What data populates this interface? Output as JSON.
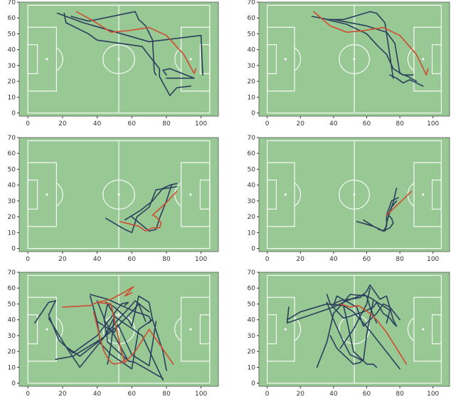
{
  "colors": {
    "pitch": "#98c995",
    "markings": "#ffffff",
    "series_a": "#2b3f5c",
    "series_b": "#cf4b32"
  },
  "chart_data": [
    {
      "type": "line",
      "xlim": [
        -5,
        110
      ],
      "ylim": [
        -2,
        70
      ],
      "xticks": [
        0,
        20,
        40,
        60,
        80,
        100
      ],
      "yticks": [
        0,
        10,
        20,
        30,
        40,
        50,
        60,
        70
      ],
      "series": [
        {
          "color": "#2b3f5c",
          "x": [
            21,
            22,
            35,
            40,
            66,
            68,
            76,
            76,
            82,
            86,
            94
          ],
          "y": [
            63,
            57,
            50,
            46,
            42,
            39,
            28,
            23,
            11,
            16,
            17
          ]
        },
        {
          "color": "#2b3f5c",
          "x": [
            17,
            32,
            70,
            100,
            101
          ],
          "y": [
            63,
            57,
            45,
            49,
            24
          ]
        },
        {
          "color": "#2b3f5c",
          "x": [
            25,
            35,
            62,
            64,
            68,
            72,
            73,
            74
          ],
          "y": [
            61,
            58,
            64,
            59,
            55,
            46,
            26,
            24
          ]
        },
        {
          "color": "#2b3f5c",
          "x": [
            80,
            96,
            82,
            78,
            80
          ],
          "y": [
            22,
            22,
            28,
            27,
            24
          ]
        },
        {
          "color": "#cf4b32",
          "x": [
            28,
            38,
            48,
            58,
            70,
            80,
            90,
            96,
            97
          ],
          "y": [
            64,
            58,
            51,
            52,
            54,
            49,
            37,
            25,
            28
          ]
        }
      ]
    },
    {
      "type": "line",
      "xlim": [
        -5,
        110
      ],
      "ylim": [
        -2,
        70
      ],
      "xticks": [
        0,
        20,
        40,
        60,
        80,
        100
      ],
      "yticks": [
        0,
        10,
        20,
        30,
        40,
        50,
        60,
        70
      ],
      "series": [
        {
          "color": "#2b3f5c",
          "x": [
            27,
            37,
            46,
            62,
            66,
            71,
            76
          ],
          "y": [
            61,
            59,
            59,
            64,
            63,
            57,
            22
          ]
        },
        {
          "color": "#2b3f5c",
          "x": [
            36,
            48,
            60,
            67,
            72,
            76,
            82,
            88
          ],
          "y": [
            59,
            56,
            50,
            42,
            37,
            28,
            24,
            24
          ]
        },
        {
          "color": "#2b3f5c",
          "x": [
            74,
            78,
            82,
            86,
            90,
            94
          ],
          "y": [
            24,
            22,
            19,
            21,
            19,
            17
          ]
        },
        {
          "color": "#2b3f5c",
          "x": [
            40,
            60,
            72,
            77,
            80,
            85,
            90
          ],
          "y": [
            59,
            55,
            51,
            44,
            25,
            23,
            20
          ]
        },
        {
          "color": "#cf4b32",
          "x": [
            28,
            38,
            48,
            58,
            70,
            80,
            90,
            96,
            97
          ],
          "y": [
            64,
            55,
            51,
            52,
            54,
            49,
            37,
            24,
            28
          ]
        }
      ]
    },
    {
      "type": "line",
      "xlim": [
        -5,
        110
      ],
      "ylim": [
        -2,
        70
      ],
      "xticks": [
        0,
        20,
        40,
        60,
        80,
        100
      ],
      "yticks": [
        0,
        10,
        20,
        30,
        40,
        50,
        60,
        70
      ],
      "series": [
        {
          "color": "#2b3f5c",
          "x": [
            45,
            56,
            60,
            63,
            70,
            74,
            86
          ],
          "y": [
            19,
            12,
            10,
            20,
            26,
            37,
            39
          ]
        },
        {
          "color": "#2b3f5c",
          "x": [
            56,
            65,
            72,
            78,
            82,
            86
          ],
          "y": [
            18,
            24,
            30,
            38,
            40,
            41
          ]
        },
        {
          "color": "#2b3f5c",
          "x": [
            60,
            70,
            74,
            76,
            80,
            83
          ],
          "y": [
            20,
            11,
            12,
            19,
            30,
            40
          ]
        },
        {
          "color": "#cf4b32",
          "x": [
            53,
            64,
            68,
            72,
            76,
            77,
            74,
            72,
            80,
            86
          ],
          "y": [
            17,
            14,
            11,
            13,
            13,
            16,
            20,
            21,
            29,
            36
          ]
        }
      ]
    },
    {
      "type": "line",
      "xlim": [
        -5,
        110
      ],
      "ylim": [
        -2,
        70
      ],
      "xticks": [
        0,
        20,
        40,
        60,
        80,
        100
      ],
      "yticks": [
        0,
        10,
        20,
        30,
        40,
        50,
        60,
        70
      ],
      "series": [
        {
          "color": "#2b3f5c",
          "x": [
            54,
            64,
            70,
            74,
            76,
            75,
            73,
            76,
            78
          ],
          "y": [
            17,
            14,
            11,
            13,
            16,
            19,
            21,
            29,
            38
          ]
        },
        {
          "color": "#2b3f5c",
          "x": [
            58,
            64,
            70,
            72,
            72,
            75,
            79
          ],
          "y": [
            18,
            14,
            11,
            14,
            21,
            30,
            32
          ]
        },
        {
          "color": "#2b3f5c",
          "x": [
            67,
            71,
            73,
            75,
            78
          ],
          "y": [
            12,
            11,
            20,
            26,
            30
          ]
        },
        {
          "color": "#cf4b32",
          "x": [
            72,
            76,
            82,
            87
          ],
          "y": [
            21,
            25,
            31,
            36
          ]
        }
      ]
    },
    {
      "type": "line",
      "xlim": [
        -5,
        110
      ],
      "ylim": [
        -2,
        70
      ],
      "xticks": [
        0,
        20,
        40,
        60,
        80,
        100
      ],
      "yticks": [
        0,
        10,
        20,
        30,
        40,
        50,
        60,
        70
      ],
      "series": [
        {
          "color": "#2b3f5c",
          "x": [
            4,
            12,
            16,
            12,
            18,
            26,
            40,
            54,
            58,
            56
          ],
          "y": [
            38,
            51,
            52,
            43,
            27,
            19,
            30,
            50,
            51,
            49
          ]
        },
        {
          "color": "#2b3f5c",
          "x": [
            12,
            22,
            30,
            44,
            50,
            66,
            78
          ],
          "y": [
            41,
            23,
            10,
            29,
            42,
            30,
            2
          ]
        },
        {
          "color": "#2b3f5c",
          "x": [
            36,
            46,
            62,
            68,
            70,
            71,
            70
          ],
          "y": [
            56,
            53,
            45,
            43,
            42,
            40,
            38
          ]
        },
        {
          "color": "#2b3f5c",
          "x": [
            40,
            50,
            52,
            60,
            70,
            74
          ],
          "y": [
            39,
            32,
            37,
            18,
            11,
            39
          ]
        },
        {
          "color": "#2b3f5c",
          "x": [
            36,
            40,
            42,
            48,
            60,
            64,
            72,
            78,
            80
          ],
          "y": [
            55,
            39,
            25,
            18,
            9,
            34,
            40,
            20,
            8
          ]
        },
        {
          "color": "#2b3f5c",
          "x": [
            22,
            30,
            44,
            52,
            58,
            62,
            70
          ],
          "y": [
            23,
            17,
            29,
            40,
            47,
            52,
            45
          ]
        },
        {
          "color": "#2b3f5c",
          "x": [
            16,
            26,
            44,
            52,
            60,
            64,
            68
          ],
          "y": [
            15,
            17,
            29,
            36,
            45,
            50,
            39
          ]
        },
        {
          "color": "#2b3f5c",
          "x": [
            45,
            50,
            58,
            60,
            64,
            70,
            72
          ],
          "y": [
            51,
            48,
            40,
            36,
            55,
            51,
            40
          ]
        },
        {
          "color": "#2b3f5c",
          "x": [
            40,
            44,
            46,
            52,
            58,
            62,
            78
          ],
          "y": [
            52,
            41,
            26,
            20,
            14,
            13,
            3
          ]
        },
        {
          "color": "#2b3f5c",
          "x": [
            46,
            48,
            50,
            46,
            44,
            50,
            58
          ],
          "y": [
            12,
            24,
            43,
            50,
            40,
            30,
            14
          ]
        },
        {
          "color": "#cf4b32",
          "x": [
            20,
            36,
            40,
            48,
            55,
            58,
            61,
            56,
            60
          ],
          "y": [
            48,
            49,
            51,
            53,
            57,
            59,
            61,
            55,
            57
          ]
        },
        {
          "color": "#cf4b32",
          "x": [
            40,
            48,
            50,
            52,
            54,
            56,
            62,
            70,
            84
          ],
          "y": [
            51,
            50,
            40,
            30,
            20,
            13,
            20,
            34,
            12
          ]
        },
        {
          "color": "#cf4b32",
          "x": [
            38,
            40,
            42,
            44,
            46,
            48,
            50,
            54,
            56
          ],
          "y": [
            45,
            36,
            27,
            20,
            16,
            13,
            12,
            13,
            15
          ]
        }
      ]
    },
    {
      "type": "line",
      "xlim": [
        -5,
        110
      ],
      "ylim": [
        -2,
        70
      ],
      "xticks": [
        0,
        20,
        40,
        60,
        80,
        100
      ],
      "yticks": [
        0,
        10,
        20,
        30,
        40,
        50,
        60,
        70
      ],
      "series": [
        {
          "color": "#2b3f5c",
          "x": [
            13,
            12,
            40,
            48,
            58,
            62,
            74,
            72
          ],
          "y": [
            48,
            38,
            48,
            52,
            56,
            54,
            46,
            38
          ]
        },
        {
          "color": "#2b3f5c",
          "x": [
            36,
            38,
            46,
            58,
            64,
            66,
            70,
            74,
            76,
            78
          ],
          "y": [
            56,
            50,
            41,
            45,
            48,
            51,
            44,
            41,
            38,
            36
          ]
        },
        {
          "color": "#2b3f5c",
          "x": [
            36,
            40,
            46,
            50,
            58,
            60,
            64
          ],
          "y": [
            51,
            40,
            26,
            18,
            14,
            31,
            52
          ]
        },
        {
          "color": "#2b3f5c",
          "x": [
            40,
            42,
            54,
            58,
            66,
            70,
            74,
            80
          ],
          "y": [
            49,
            55,
            48,
            36,
            44,
            50,
            48,
            40
          ]
        },
        {
          "color": "#2b3f5c",
          "x": [
            30,
            36,
            40,
            46,
            50,
            60,
            62,
            66
          ],
          "y": [
            10,
            26,
            44,
            51,
            56,
            55,
            48,
            38
          ]
        },
        {
          "color": "#2b3f5c",
          "x": [
            40,
            44,
            56,
            60,
            62,
            68,
            72,
            76,
            78
          ],
          "y": [
            50,
            52,
            54,
            58,
            62,
            53,
            55,
            40,
            36
          ]
        },
        {
          "color": "#2b3f5c",
          "x": [
            12,
            20,
            36,
            46,
            52,
            58,
            62,
            80
          ],
          "y": [
            40,
            45,
            50,
            49,
            45,
            38,
            33,
            9
          ]
        },
        {
          "color": "#2b3f5c",
          "x": [
            46,
            48,
            50,
            52,
            56,
            60,
            64,
            66
          ],
          "y": [
            49,
            40,
            30,
            20,
            16,
            12,
            12,
            10
          ]
        },
        {
          "color": "#2b3f5c",
          "x": [
            38,
            42,
            46,
            50,
            52,
            56,
            58
          ],
          "y": [
            30,
            22,
            18,
            14,
            12,
            13,
            15
          ]
        },
        {
          "color": "#2b3f5c",
          "x": [
            44,
            48,
            52,
            56,
            60,
            62
          ],
          "y": [
            22,
            28,
            34,
            42,
            50,
            60
          ]
        },
        {
          "color": "#cf4b32",
          "x": [
            44,
            50,
            55,
            58,
            62,
            66,
            72,
            78,
            84
          ],
          "y": [
            50,
            48,
            49,
            47,
            44,
            40,
            32,
            22,
            12
          ]
        }
      ]
    }
  ]
}
